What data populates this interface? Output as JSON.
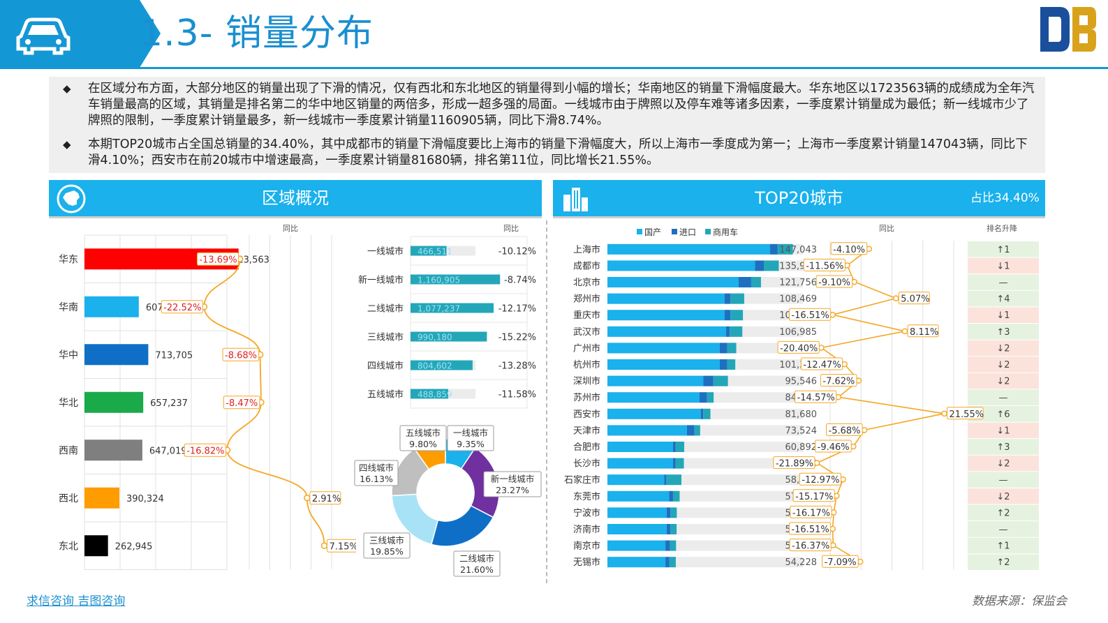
{
  "header": {
    "title": "1.3- 销量分布"
  },
  "summary": {
    "bullet1": "在区域分布方面，大部分地区的销量出现了下滑的情况，仅有西北和东北地区的销量得到小幅的增长；华南地区的销量下滑幅度最大。华东地区以1723563辆的成绩成为全年汽车销量最高的区域，其销量是排名第二的华中地区销量的两倍多，形成一超多强的局面。一线城市由于牌照以及停车难等诸多因素，一季度累计销量成为最低；新一线城市少了牌照的限制，一季度累计销量最多，新一线城市一季度累计销量1160905辆，同比下滑8.74%。",
    "bullet2": "本期TOP20城市占全国总销量的34.40%，其中成都市的销量下滑幅度要比上海市的销量下滑幅度大，所以上海市一季度成为第一；上海市一季度累计销量147043辆，同比下滑4.10%；西安市在前20城市中增速最高，一季度累计销量81680辆，排名第11位，同比增长21.55%。"
  },
  "panels": {
    "left_title": "区域概况",
    "right_title": "TOP20城市",
    "right_share": "占比34.40%"
  },
  "colors": {
    "accent": "#1ab1ec",
    "domestic": "#1ab1ec",
    "import": "#1f6fc1",
    "commercial": "#23a7b8",
    "growth_line": "#f5a623",
    "negative": "#e02020"
  },
  "chart_data": [
    {
      "type": "bar",
      "orientation": "horizontal",
      "name": "regions",
      "categories": [
        "华东",
        "华南",
        "华中",
        "华北",
        "西南",
        "西北",
        "东北"
      ],
      "values": [
        1723563,
        607615,
        713705,
        657237,
        647019,
        390324,
        262945
      ],
      "labels": [
        "1,723,563",
        "607,615",
        "713,705",
        "657,237",
        "647,019",
        "390,324",
        "262,945"
      ],
      "colors": [
        "#ff0000",
        "#1ab1ec",
        "#0f6fc6",
        "#1aaa4a",
        "#7f7f7f",
        "#ff9c00",
        "#000000"
      ],
      "yoy_label": "同比",
      "yoy": [
        -13.69,
        -22.52,
        -8.68,
        -8.47,
        -16.82,
        2.91,
        7.15
      ],
      "yoy_labels": [
        "-13.69%",
        "-22.52%",
        "-8.68%",
        "-8.47%",
        "-16.82%",
        "2.91%",
        "7.15%"
      ]
    },
    {
      "type": "bar",
      "orientation": "horizontal",
      "name": "city_tiers",
      "categories": [
        "一线城市",
        "新一线城市",
        "二线城市",
        "三线城市",
        "四线城市",
        "五线城市"
      ],
      "values": [
        466511,
        1160905,
        1077237,
        990180,
        804602,
        488859
      ],
      "labels": [
        "466,511",
        "1,160,905",
        "1,077,237",
        "990,180",
        "804,602",
        "488,859"
      ],
      "yoy_label": "同比",
      "yoy_labels": [
        "-10.12%",
        "-8.74%",
        "-12.17%",
        "-15.22%",
        "-13.28%",
        "-11.58%"
      ]
    },
    {
      "type": "pie",
      "name": "city_tier_share",
      "categories": [
        "一线城市",
        "新一线城市",
        "二线城市",
        "三线城市",
        "四线城市",
        "五线城市"
      ],
      "values": [
        9.35,
        23.27,
        21.6,
        19.85,
        16.13,
        9.8
      ],
      "labels": [
        "9.35%",
        "23.27%",
        "21.60%",
        "19.85%",
        "16.13%",
        "9.80%"
      ],
      "colors": [
        "#1ab1ec",
        "#7030a0",
        "#0f6fc6",
        "#a8e2f7",
        "#bfbfbf",
        "#ff9c00"
      ]
    },
    {
      "type": "bar",
      "orientation": "horizontal",
      "stacked": true,
      "name": "top20",
      "legend": [
        "国产",
        "进口",
        "商用车"
      ],
      "categories": [
        "上海市",
        "成都市",
        "北京市",
        "郑州市",
        "重庆市",
        "武汉市",
        "广州市",
        "杭州市",
        "深圳市",
        "苏州市",
        "西安市",
        "天津市",
        "合肥市",
        "长沙市",
        "石家庄市",
        "东莞市",
        "宁波市",
        "济南市",
        "南京市",
        "无锡市"
      ],
      "series": [
        {
          "name": "国产",
          "values": [
            129000,
            117000,
            104000,
            93000,
            93000,
            94000,
            89000,
            89000,
            76000,
            73000,
            74000,
            63000,
            52000,
            52000,
            45000,
            49000,
            47000,
            47000,
            46000,
            46000
          ]
        },
        {
          "name": "进口",
          "values": [
            6000,
            7000,
            10000,
            4500,
            4500,
            3000,
            6000,
            6000,
            8000,
            6000,
            2000,
            6000,
            2000,
            2000,
            1500,
            3000,
            3000,
            3000,
            3500,
            3000
          ]
        },
        {
          "name": "商用车",
          "values": [
            12043,
            11905,
            7756,
            10969,
            9941,
            9985,
            7160,
            6385,
            11546,
            5228,
            5680,
            4524,
            6892,
            6624,
            12169,
            5258,
            5014,
            4860,
            4928,
            5228
          ]
        }
      ],
      "labels": [
        "147,043",
        "135,905",
        "121,756",
        "108,469",
        "107,441",
        "106,985",
        "102,160",
        "101,385",
        "95,546",
        "84,228",
        "81,680",
        "73,524",
        "60,892",
        "60,624",
        "58,669",
        "57,258",
        "55,014",
        "54,860",
        "54,428",
        "54,228"
      ],
      "yoy_label": "同比",
      "yoy": [
        -4.1,
        -11.56,
        -9.1,
        5.07,
        -16.51,
        8.11,
        -20.4,
        -12.47,
        -7.62,
        -14.57,
        21.55,
        -5.68,
        -9.46,
        -21.89,
        -12.97,
        -15.17,
        -16.17,
        -16.51,
        -16.37,
        -7.09
      ],
      "yoy_labels": [
        "-4.10%",
        "-11.56%",
        "-9.10%",
        "5.07%",
        "-16.51%",
        "8.11%",
        "-20.40%",
        "-12.47%",
        "-7.62%",
        "-14.57%",
        "21.55%",
        "-5.68%",
        "-9.46%",
        "-21.89%",
        "-12.97%",
        "-15.17%",
        "-16.17%",
        "-16.51%",
        "-16.37%",
        "-7.09%"
      ],
      "rank_label": "排名升降",
      "rank_change": [
        "↑1",
        "↓1",
        "—",
        "↑4",
        "↓1",
        "↑3",
        "↓2",
        "↓2",
        "↓2",
        "—",
        "↑6",
        "↓1",
        "↑3",
        "↓2",
        "—",
        "↓2",
        "↑2",
        "—",
        "↑1",
        "↑2"
      ]
    }
  ],
  "footer": {
    "left": "求信咨询  吉图咨询",
    "right": "数据来源：保监会"
  }
}
